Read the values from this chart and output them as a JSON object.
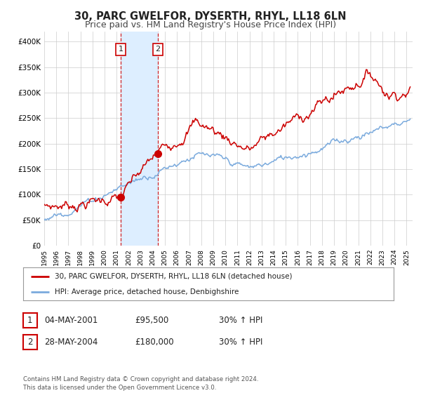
{
  "title": "30, PARC GWELFOR, DYSERTH, RHYL, LL18 6LN",
  "subtitle": "Price paid vs. HM Land Registry's House Price Index (HPI)",
  "title_fontsize": 10.5,
  "subtitle_fontsize": 9,
  "xlim_start": 1995.0,
  "xlim_end": 2025.5,
  "ylim_min": 0,
  "ylim_max": 420000,
  "yticks": [
    0,
    50000,
    100000,
    150000,
    200000,
    250000,
    300000,
    350000,
    400000
  ],
  "ytick_labels": [
    "£0",
    "£50K",
    "£100K",
    "£150K",
    "£200K",
    "£250K",
    "£300K",
    "£350K",
    "£400K"
  ],
  "transaction1_date": 2001.34,
  "transaction1_price": 95500,
  "transaction2_date": 2004.41,
  "transaction2_price": 180000,
  "shade_start": 2001.34,
  "shade_end": 2004.41,
  "shade_color": "#ddeeff",
  "line1_color": "#cc0000",
  "line2_color": "#7aaadd",
  "legend1_label": "30, PARC GWELFOR, DYSERTH, RHYL, LL18 6LN (detached house)",
  "legend2_label": "HPI: Average price, detached house, Denbighshire",
  "table_row1": [
    "1",
    "04-MAY-2001",
    "£95,500",
    "30% ↑ HPI"
  ],
  "table_row2": [
    "2",
    "28-MAY-2004",
    "£180,000",
    "30% ↑ HPI"
  ],
  "footer": "Contains HM Land Registry data © Crown copyright and database right 2024.\nThis data is licensed under the Open Government Licence v3.0.",
  "background_color": "#ffffff",
  "grid_color": "#cccccc"
}
